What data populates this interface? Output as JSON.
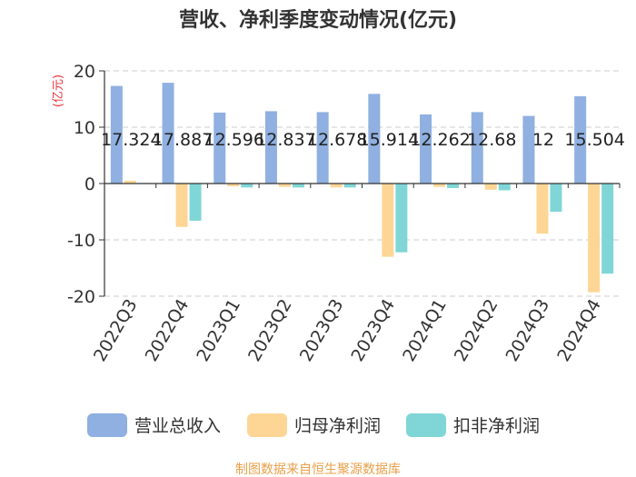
{
  "chart_data": {
    "type": "bar",
    "title": "营收、净利季度变动情况(亿元)",
    "ylabel": "(亿元)",
    "xlabel": "",
    "ylim": [
      -20,
      20
    ],
    "yticks": [
      20,
      10,
      0,
      -10,
      -20
    ],
    "grid": true,
    "legend_position": "bottom",
    "categories": [
      "2022Q3",
      "2022Q4",
      "2023Q1",
      "2023Q2",
      "2023Q3",
      "2023Q4",
      "2024Q1",
      "2024Q2",
      "2024Q3",
      "2024Q4"
    ],
    "series": [
      {
        "name": "营业总收入",
        "color": "#8fb0e0",
        "values": [
          17.324,
          17.887,
          12.596,
          12.837,
          12.678,
          15.914,
          12.262,
          12.68,
          12,
          15.504
        ],
        "labels": [
          "17.324",
          "17.887",
          "12.596",
          "12.837",
          "12.678",
          "15.914",
          "12.262",
          "12.68",
          "12",
          "15.504"
        ]
      },
      {
        "name": "归母净利润",
        "color": "#fdd696",
        "values": [
          0.5,
          -7.7,
          -0.5,
          -0.6,
          -0.7,
          -13.0,
          -0.6,
          -1.1,
          -8.9,
          -19.3
        ]
      },
      {
        "name": "扣非净利润",
        "color": "#80d6d6",
        "values": [
          0.1,
          -6.6,
          -0.7,
          -0.7,
          -0.7,
          -12.2,
          -0.8,
          -1.2,
          -5.0,
          -16.0
        ]
      }
    ]
  },
  "source": "制图数据来自恒生聚源数据库",
  "colors": {
    "title": "#333333",
    "axis": "#333333",
    "grid": "#cccccc",
    "unit": "#e8333a",
    "source": "#e8a04a"
  }
}
